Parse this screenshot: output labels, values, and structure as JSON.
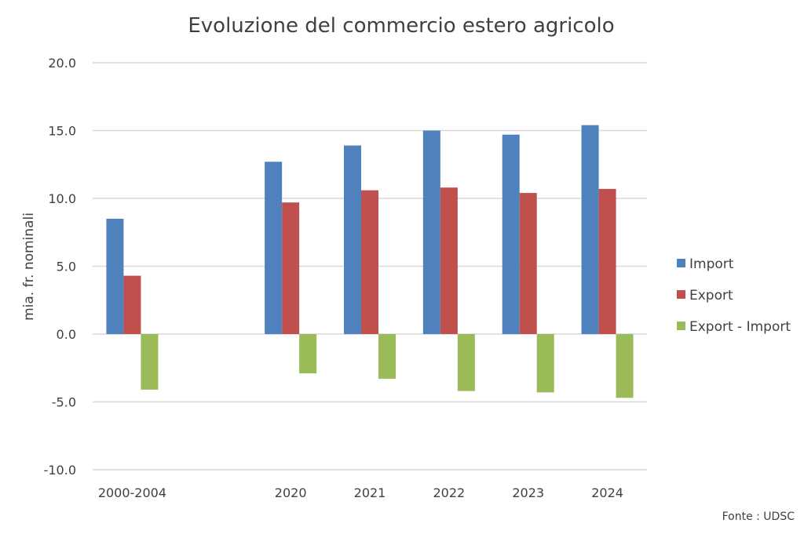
{
  "chart_data": {
    "type": "bar",
    "title": "Evoluzione del commercio estero agricolo",
    "ylabel": "mia. fr. nominali",
    "xlabel": "",
    "ylim": [
      -10,
      20
    ],
    "yticks": [
      "20.0",
      "15.0",
      "10.0",
      "5.0",
      "0.0",
      "-5.0",
      "-10.0"
    ],
    "ytick_values": [
      20,
      15,
      10,
      5,
      0,
      -5,
      -10
    ],
    "grid": true,
    "legend_position": "right",
    "categories": [
      "2000-2004",
      "",
      "2020",
      "2021",
      "2022",
      "2023",
      "2024"
    ],
    "series": [
      {
        "name": "Import",
        "color": "#4F81BD",
        "values": [
          8.5,
          null,
          12.7,
          13.9,
          15.0,
          14.7,
          15.4
        ]
      },
      {
        "name": "Export",
        "color": "#C0504D",
        "values": [
          4.3,
          null,
          9.7,
          10.6,
          10.8,
          10.4,
          10.7
        ]
      },
      {
        "name": "Export - Import",
        "color": "#9BBB59",
        "values": [
          -4.1,
          null,
          -2.9,
          -3.3,
          -4.2,
          -4.3,
          -4.7
        ]
      }
    ],
    "source": "Fonte : UDSC"
  }
}
